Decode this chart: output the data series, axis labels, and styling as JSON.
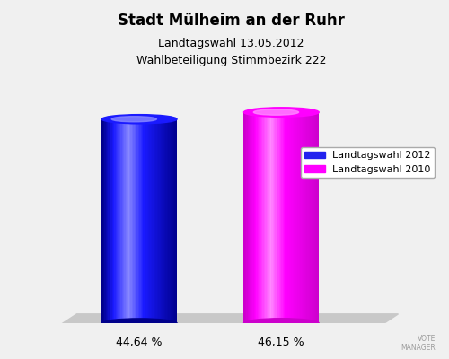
{
  "title_line1": "Stadt Mülheim an der Ruhr",
  "title_line2": "Landtagswahl 13.05.2012",
  "title_line3": "Wahlbeteiligung Stimmbezirk 222",
  "values": [
    44.64,
    46.15
  ],
  "bar_colors_main": [
    "#1a1aff",
    "#ff00ff"
  ],
  "bar_colors_dark": [
    "#00008b",
    "#cc00cc"
  ],
  "bar_colors_light": [
    "#8888ff",
    "#ff88ff"
  ],
  "bar_labels": [
    "44,64 %",
    "46,15 %"
  ],
  "legend_labels": [
    "Landtagswahl 2012",
    "Landtagswahl 2010"
  ],
  "legend_colors": [
    "#2222ee",
    "#ff00ff"
  ],
  "background_color": "#f0f0f0",
  "shadow_color": "#c8c8c8"
}
